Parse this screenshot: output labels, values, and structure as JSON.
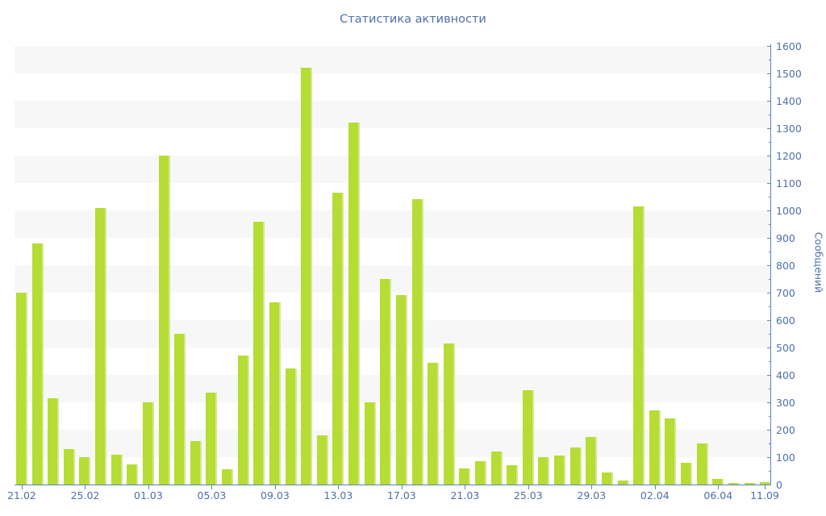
{
  "chart_data": {
    "type": "bar",
    "title": "Статистика активности",
    "ylabel": "Сообщений",
    "xlabel": "",
    "values": [
      700,
      880,
      315,
      130,
      100,
      1010,
      110,
      75,
      300,
      1200,
      550,
      160,
      335,
      55,
      470,
      960,
      665,
      425,
      1520,
      180,
      1065,
      1320,
      300,
      750,
      690,
      1040,
      445,
      515,
      60,
      85,
      120,
      70,
      345,
      100,
      105,
      135,
      175,
      45,
      15,
      1015,
      270,
      240,
      80,
      150,
      20,
      5,
      5,
      10
    ],
    "x_tick_labels": [
      "21.02",
      "25.02",
      "01.03",
      "05.03",
      "09.03",
      "13.03",
      "17.03",
      "21.03",
      "25.03",
      "29.03",
      "02.04",
      "06.04",
      "11.09"
    ],
    "x_tick_every_n_bars": 4,
    "y_tick_labels": [
      0,
      100,
      200,
      300,
      400,
      500,
      600,
      700,
      800,
      900,
      1000,
      1100,
      1200,
      1300,
      1400,
      1500,
      1600
    ],
    "y_minor_tick_step": 50,
    "ylim": [
      0,
      1600
    ],
    "grid": "alternating horizontal bands of 100 units",
    "legend": "none",
    "colors": {
      "bar_fill": "#b5dd33",
      "bar_edge_highlight": "#d3e98e",
      "stripe_gray": "#f7f7f8",
      "axis_line_blue": "#5d84c4",
      "label_blue": "#4c70ae",
      "background": "#ffffff"
    }
  }
}
